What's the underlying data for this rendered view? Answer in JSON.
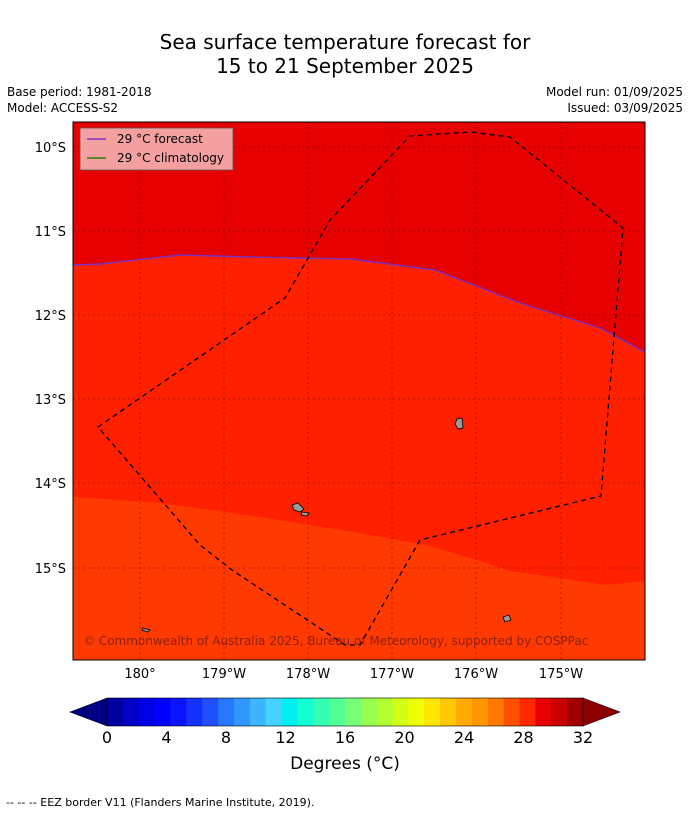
{
  "title": {
    "line1": "Sea surface temperature forecast for",
    "line2": "15 to 21 September 2025"
  },
  "meta": {
    "base_period": "Base period: 1981-2018",
    "model": "Model: ACCESS-S2",
    "model_run": "Model run: 01/09/2025",
    "issued": "Issued: 03/09/2025"
  },
  "legend": {
    "forecast": "29 °C  forecast",
    "climatology": "29 °C  climatology",
    "forecast_color": "#7b2fbe",
    "climatology_color": "#2e7d00"
  },
  "map": {
    "lat_labels": [
      "10°S",
      "11°S",
      "12°S",
      "13°S",
      "14°S",
      "15°S"
    ],
    "lon_labels": [
      "180°",
      "179°W",
      "178°W",
      "177°W",
      "176°W",
      "175°W"
    ],
    "copyright": "© Commonwealth of Australia 2025, Bureau of Meteorology, supported by COSPPac",
    "zone_colors": {
      "warmest": "#e60000",
      "middle": "#ff2000",
      "coolest": "#ff3a00"
    }
  },
  "colorbar": {
    "ticks": [
      "0",
      "4",
      "8",
      "12",
      "16",
      "20",
      "24",
      "28",
      "32"
    ],
    "label": "Degrees (°C)",
    "colors": [
      "#0000a0",
      "#0000c8",
      "#0000e6",
      "#0000ff",
      "#0a14ff",
      "#1432ff",
      "#1e50ff",
      "#2878ff",
      "#3296ff",
      "#3cb4ff",
      "#46d2ff",
      "#00f0f0",
      "#14ffd2",
      "#32ffb4",
      "#50ff96",
      "#78ff78",
      "#96ff50",
      "#b4ff32",
      "#d2ff14",
      "#f0ff00",
      "#ffe600",
      "#ffc800",
      "#ffaa00",
      "#ff9600",
      "#ff7800",
      "#ff5000",
      "#ff2800",
      "#e60000",
      "#c80000",
      "#a00000"
    ],
    "under_color": "#000082",
    "over_color": "#8c0000"
  },
  "footer": "--  --  -- EEZ border V11 (Flanders Marine Institute, 2019)."
}
